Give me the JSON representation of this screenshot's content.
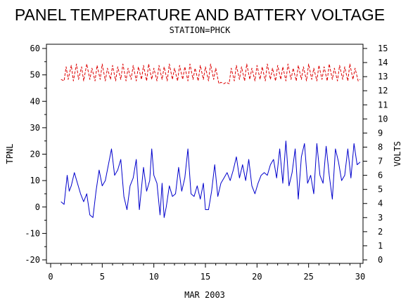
{
  "chart_data": {
    "type": "line",
    "title": "PANEL TEMPERATURE AND BATTERY VOLTAGE",
    "subtitle": "STATION=PHCK",
    "xlabel": "MAR 2003",
    "ylabel_left": "TPNL",
    "ylabel_right": "VOLTS",
    "xlim": [
      0,
      30
    ],
    "ylim_left": [
      -20,
      60
    ],
    "ylim_right": [
      0,
      15
    ],
    "xticks": [
      "0",
      "5",
      "10",
      "15",
      "20",
      "25",
      "30"
    ],
    "yticks_left": [
      "-20",
      "-10",
      "0",
      "10",
      "20",
      "30",
      "40",
      "50",
      "60"
    ],
    "yticks_right": [
      "0",
      "1",
      "2",
      "3",
      "4",
      "5",
      "6",
      "7",
      "8",
      "9",
      "10",
      "11",
      "12",
      "13",
      "14",
      "15"
    ],
    "grid": false,
    "series": [
      {
        "axis": "left",
        "color": "#0000cc",
        "style": "solid",
        "x": [
          1.0,
          1.3,
          1.6,
          1.8,
          2.0,
          2.3,
          2.6,
          2.9,
          3.2,
          3.5,
          3.8,
          4.1,
          4.4,
          4.7,
          5.0,
          5.3,
          5.6,
          5.9,
          6.2,
          6.5,
          6.8,
          7.1,
          7.4,
          7.7,
          8.0,
          8.3,
          8.6,
          9.0,
          9.3,
          9.6,
          9.8,
          10.0,
          10.3,
          10.6,
          10.8,
          11.0,
          11.2,
          11.5,
          11.8,
          12.1,
          12.4,
          12.7,
          13.0,
          13.3,
          13.6,
          13.9,
          14.2,
          14.5,
          14.8,
          15.0,
          15.3,
          15.6,
          15.9,
          16.2,
          16.5,
          16.8,
          17.1,
          17.4,
          17.7,
          18.0,
          18.3,
          18.6,
          18.9,
          19.2,
          19.5,
          19.8,
          20.1,
          20.4,
          20.7,
          21.0,
          21.3,
          21.6,
          21.9,
          22.2,
          22.5,
          22.8,
          23.1,
          23.4,
          23.7,
          24.0,
          24.3,
          24.6,
          24.9,
          25.2,
          25.5,
          25.8,
          26.1,
          26.4,
          26.7,
          27.0,
          27.3,
          27.6,
          27.9,
          28.2,
          28.5,
          28.8,
          29.1,
          29.4,
          29.7,
          30.0
        ],
        "y": [
          2,
          1,
          12,
          6,
          8,
          13,
          9,
          5,
          2,
          5,
          -3,
          -4,
          6,
          14,
          8,
          10,
          16,
          22,
          12,
          14,
          18,
          4,
          -1,
          8,
          11,
          18,
          -1,
          15,
          6,
          10,
          22,
          12,
          9,
          -3,
          9,
          -4,
          0,
          8,
          4,
          5,
          15,
          6,
          11,
          22,
          5,
          4,
          8,
          3,
          9,
          -1,
          -1,
          6,
          16,
          4,
          9,
          11,
          13,
          10,
          14,
          19,
          11,
          16,
          10,
          18,
          8,
          5,
          9,
          12,
          13,
          12,
          16,
          18,
          11,
          22,
          9,
          25,
          8,
          13,
          22,
          3,
          19,
          24,
          9,
          12,
          5,
          24,
          12,
          9,
          23,
          12,
          3,
          22,
          17,
          10,
          12,
          22,
          11,
          24,
          16,
          17
        ]
      },
      {
        "axis": "right",
        "color": "#dd0000",
        "style": "dashed",
        "x": [
          1.0,
          1.3,
          1.5,
          1.7,
          2.0,
          2.2,
          2.5,
          2.7,
          3.0,
          3.2,
          3.5,
          3.8,
          4.0,
          4.3,
          4.5,
          4.8,
          5.0,
          5.3,
          5.5,
          5.8,
          6.0,
          6.3,
          6.5,
          6.8,
          7.0,
          7.3,
          7.5,
          7.8,
          8.0,
          8.3,
          8.5,
          8.8,
          9.0,
          9.3,
          9.5,
          9.8,
          10.0,
          10.3,
          10.5,
          10.8,
          11.0,
          11.3,
          11.5,
          11.8,
          12.0,
          12.3,
          12.5,
          12.8,
          13.0,
          13.3,
          13.5,
          13.8,
          14.0,
          14.3,
          14.5,
          14.8,
          15.0,
          15.3,
          15.5,
          15.8,
          16.0,
          16.3,
          16.5,
          16.8,
          17.0,
          17.3,
          17.5,
          17.8,
          18.0,
          18.3,
          18.5,
          18.8,
          19.0,
          19.3,
          19.5,
          19.8,
          20.0,
          20.3,
          20.5,
          20.8,
          21.0,
          21.3,
          21.5,
          21.8,
          22.0,
          22.3,
          22.5,
          22.8,
          23.0,
          23.3,
          23.5,
          23.8,
          24.0,
          24.3,
          24.5,
          24.8,
          25.0,
          25.3,
          25.5,
          25.8,
          26.0,
          26.3,
          26.5,
          26.8,
          27.0,
          27.3,
          27.5,
          27.8,
          28.0,
          28.3,
          28.5,
          28.8,
          29.0,
          29.3,
          29.5,
          29.8,
          30.0
        ],
        "y": [
          12.8,
          12.7,
          13.7,
          12.8,
          13.8,
          12.7,
          13.9,
          12.8,
          13.7,
          12.7,
          13.9,
          12.8,
          13.6,
          12.7,
          13.8,
          12.8,
          13.9,
          12.7,
          13.6,
          12.8,
          13.8,
          12.7,
          13.7,
          12.8,
          13.9,
          12.7,
          13.6,
          12.8,
          13.8,
          12.7,
          13.7,
          12.8,
          13.8,
          12.7,
          13.9,
          12.8,
          13.6,
          12.7,
          13.8,
          12.8,
          13.7,
          12.7,
          13.9,
          12.8,
          13.6,
          12.7,
          13.8,
          12.8,
          13.7,
          12.7,
          13.9,
          12.8,
          13.6,
          12.7,
          13.8,
          12.8,
          13.7,
          12.7,
          13.9,
          12.8,
          13.6,
          12.5,
          12.6,
          12.5,
          12.6,
          12.5,
          13.6,
          12.7,
          13.8,
          12.8,
          13.7,
          12.7,
          13.9,
          12.8,
          13.6,
          12.7,
          13.8,
          12.8,
          13.7,
          12.7,
          13.9,
          12.8,
          13.6,
          12.7,
          13.8,
          12.8,
          13.7,
          12.7,
          13.9,
          12.8,
          13.6,
          12.7,
          13.8,
          12.8,
          13.7,
          12.7,
          13.9,
          12.8,
          13.6,
          12.7,
          13.8,
          12.8,
          13.7,
          12.7,
          13.9,
          12.8,
          13.6,
          12.7,
          13.8,
          12.8,
          13.7,
          12.7,
          13.9,
          12.8,
          13.6,
          12.7,
          12.8
        ]
      }
    ]
  }
}
